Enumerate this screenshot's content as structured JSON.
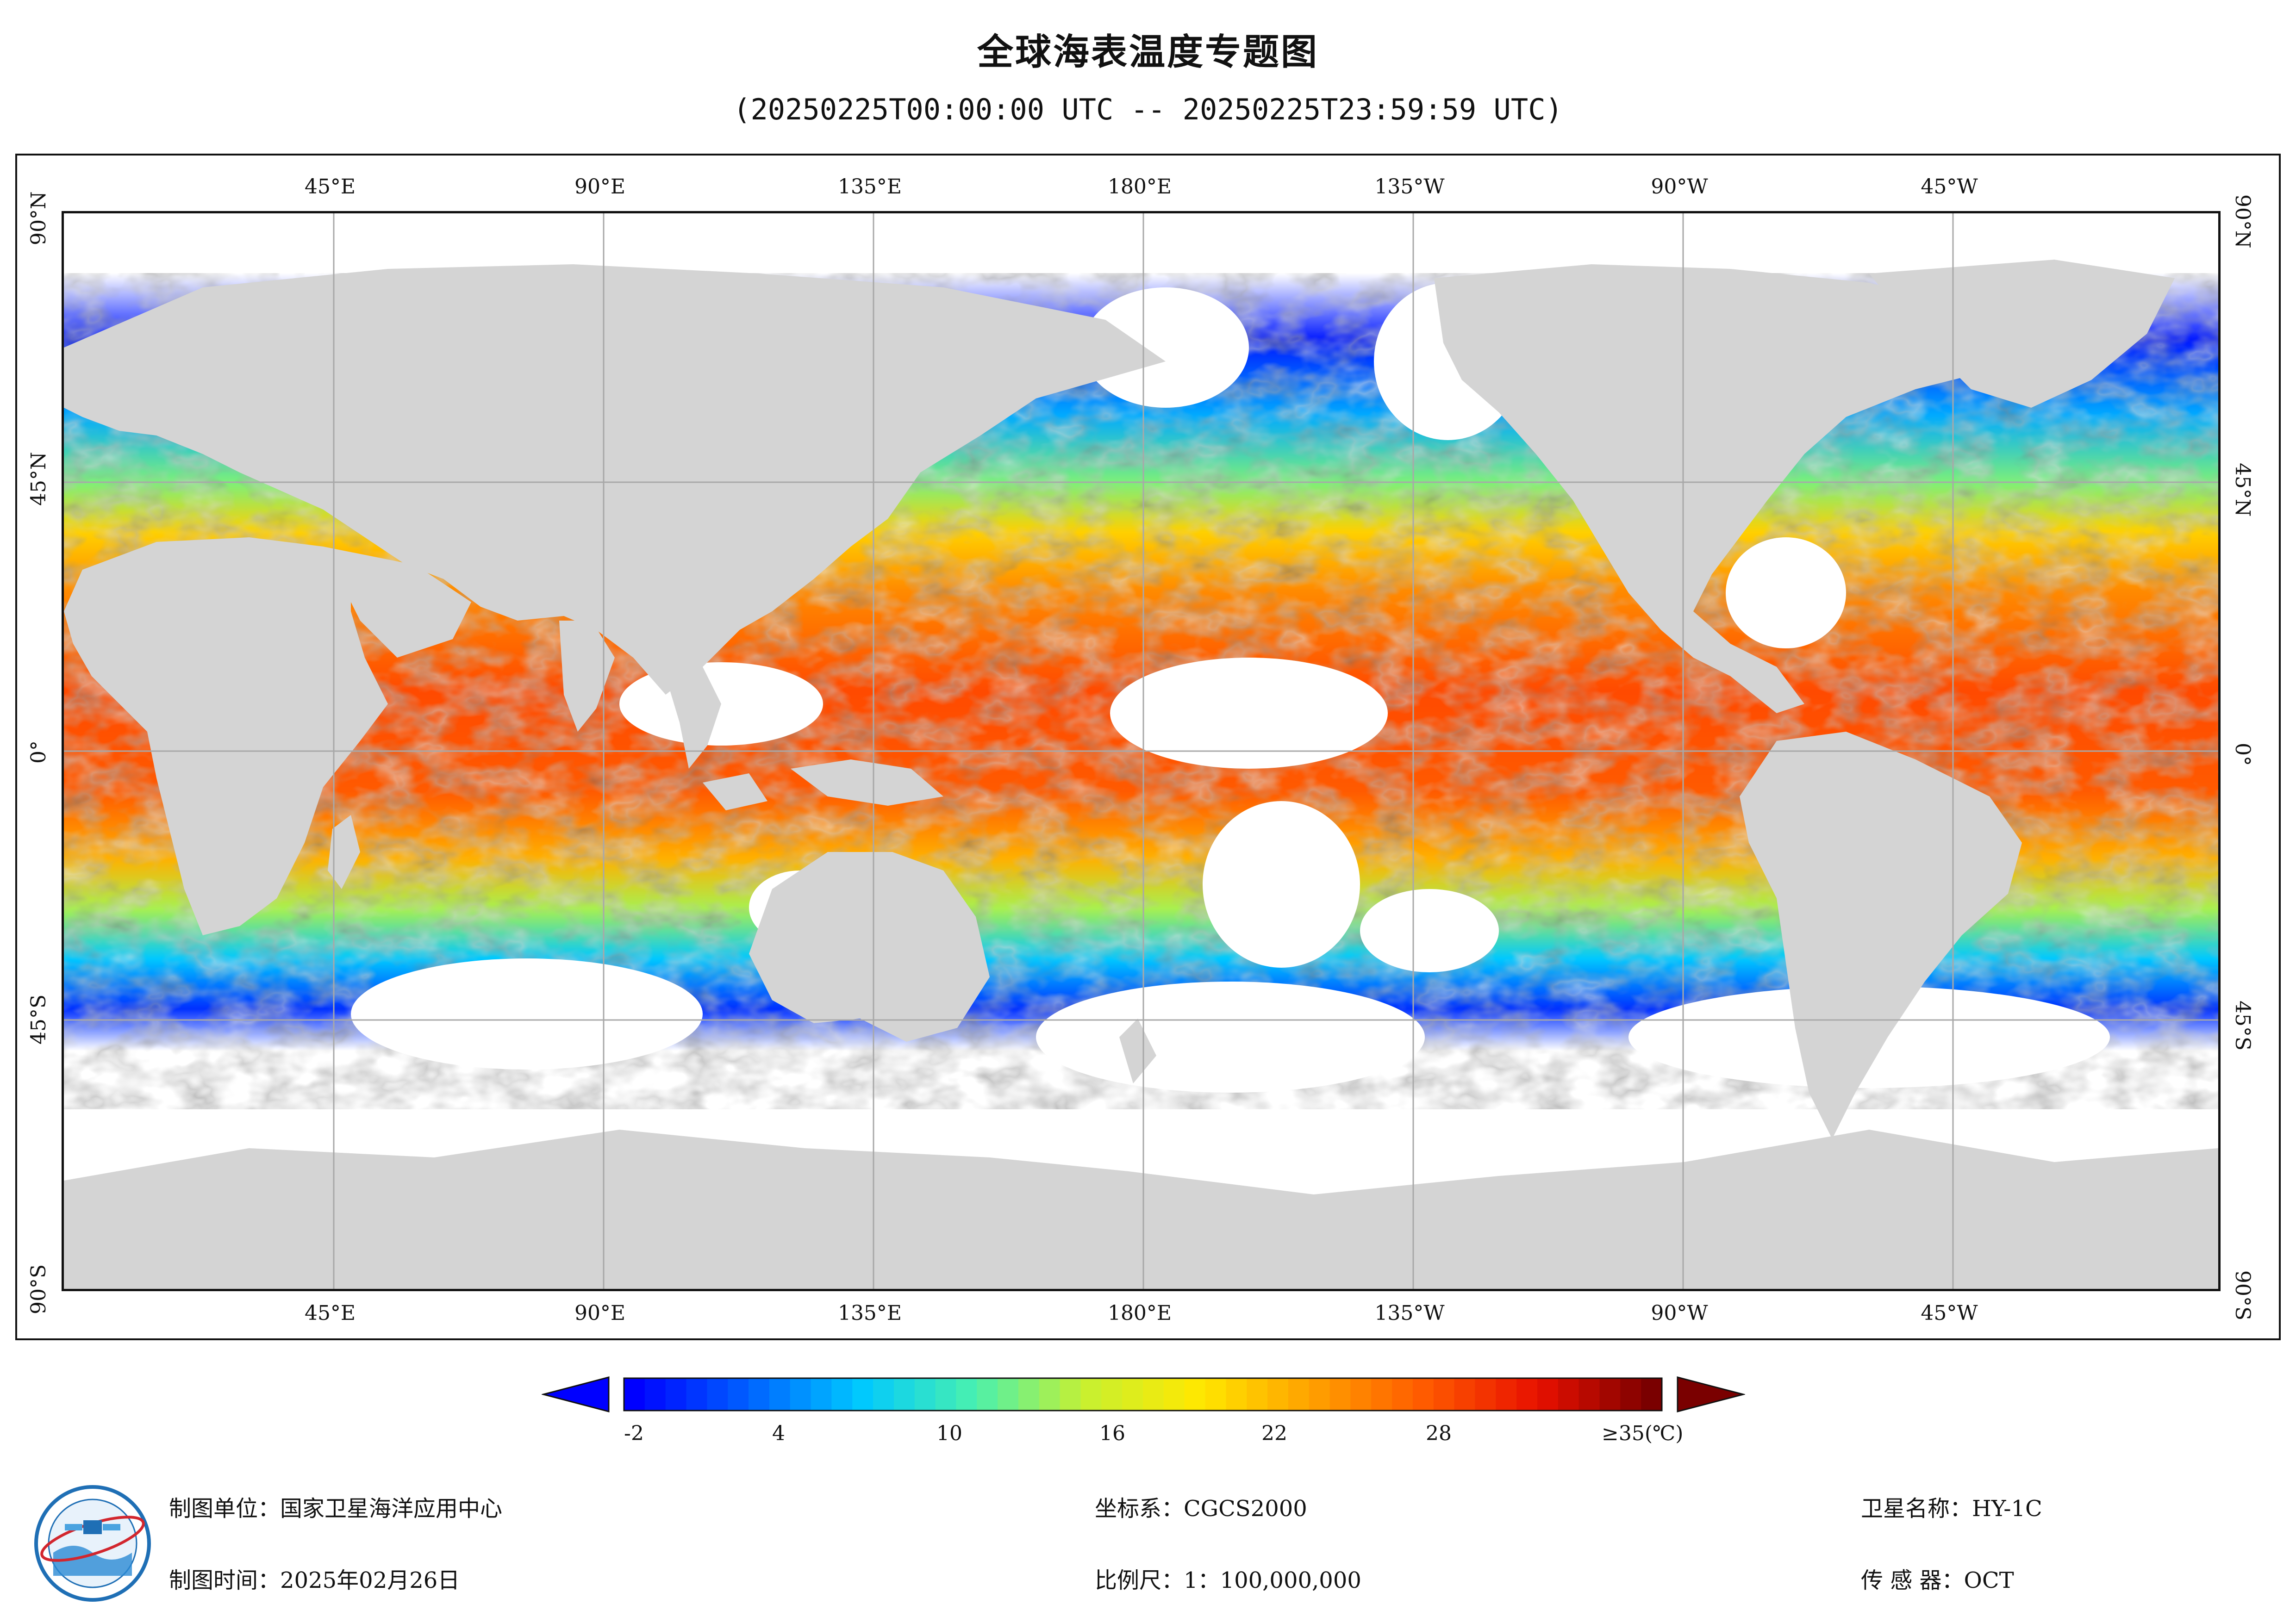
{
  "title": "全球海表温度专题图",
  "subtitle": "(20250225T00:00:00 UTC -- 20250225T23:59:59 UTC)",
  "map": {
    "top_ticks": [
      "45°E",
      "90°E",
      "135°E",
      "180°E",
      "135°W",
      "90°W",
      "45°W"
    ],
    "bottom_ticks": [
      "45°E",
      "90°E",
      "135°E",
      "180°E",
      "135°W",
      "90°W",
      "45°W"
    ],
    "left_ticks": [
      "90°N",
      "45°N",
      "0°",
      "45°S",
      "90°S"
    ],
    "right_ticks": [
      "90°N",
      "45°N",
      "0°",
      "45°S",
      "90°S"
    ],
    "colors": {
      "land": "#d4d4d4",
      "nodata": "#ffffff",
      "grid": "#a8a8a8"
    }
  },
  "colorbar": {
    "labels": [
      "-2",
      "4",
      "10",
      "16",
      "22",
      "28"
    ],
    "max_label": "≥35(℃)",
    "min_value": -2,
    "max_value": 35,
    "colors": [
      "#0000ff",
      "#0060ff",
      "#00c8ff",
      "#48f0b0",
      "#c8f030",
      "#ffe800",
      "#ffa000",
      "#ff5a00",
      "#e81000",
      "#7a0000"
    ]
  },
  "footer": {
    "unit": "制图单位：国家卫星海洋应用中心",
    "date": "制图时间：2025年02月26日",
    "crs": "坐标系：CGCS2000",
    "scale": "比例尺：1：100,000,000",
    "satellite": "卫星名称：HY-1C",
    "sensor": "传 感 器：OCT"
  }
}
